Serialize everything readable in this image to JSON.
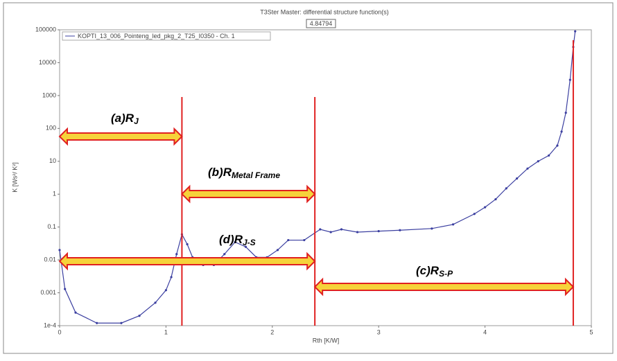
{
  "chart_data": {
    "type": "line",
    "title": "T3Ster Master: differential structure function(s)",
    "cursor_label": "4.84794",
    "xlabel": "Rth  [K/W]",
    "ylabel": "K [Ws²/ K²]",
    "log_y": true,
    "xlim": [
      0,
      5
    ],
    "xticks": [
      0,
      1,
      2,
      3,
      4,
      5
    ],
    "ylim": [
      0.0001,
      100000
    ],
    "yticks": [
      100000,
      10000,
      1000,
      100,
      10,
      1,
      0.1,
      0.01,
      0.001,
      {
        "value": 0.0001,
        "label": "1e-4"
      }
    ],
    "series": [
      {
        "name": "KOPTI_13_006_Pointeng_led_pkg_2_T25_I0350 - Ch. 1",
        "color": "#3b3fa0",
        "x": [
          0,
          0.05,
          0.15,
          0.35,
          0.58,
          0.75,
          0.9,
          1.0,
          1.05,
          1.1,
          1.15,
          1.2,
          1.25,
          1.35,
          1.45,
          1.55,
          1.65,
          1.75,
          1.85,
          1.95,
          2.05,
          2.15,
          2.3,
          2.45,
          2.55,
          2.65,
          2.8,
          3.0,
          3.2,
          3.5,
          3.7,
          3.9,
          4.0,
          4.1,
          4.2,
          4.3,
          4.4,
          4.5,
          4.6,
          4.68,
          4.72,
          4.76,
          4.8,
          4.83,
          4.848
        ],
        "values": [
          0.02,
          0.0013,
          0.00025,
          0.00012,
          0.00012,
          0.0002,
          0.0005,
          0.0012,
          0.003,
          0.015,
          0.06,
          0.03,
          0.012,
          0.007,
          0.007,
          0.015,
          0.035,
          0.025,
          0.012,
          0.012,
          0.02,
          0.04,
          0.04,
          0.085,
          0.07,
          0.085,
          0.07,
          0.075,
          0.08,
          0.09,
          0.12,
          0.25,
          0.4,
          0.7,
          1.5,
          3,
          6,
          10,
          15,
          30,
          80,
          300,
          3000,
          30000,
          90000
        ]
      }
    ],
    "vlines": [
      1.15,
      2.4,
      4.83
    ],
    "annotations": [
      {
        "text": "(a)R",
        "sub": "J"
      },
      {
        "text": "(b)R",
        "sub": "Metal Frame"
      },
      {
        "text": "(d)R",
        "sub": "J-S"
      },
      {
        "text": "(c)R",
        "sub": "S-P"
      }
    ]
  }
}
